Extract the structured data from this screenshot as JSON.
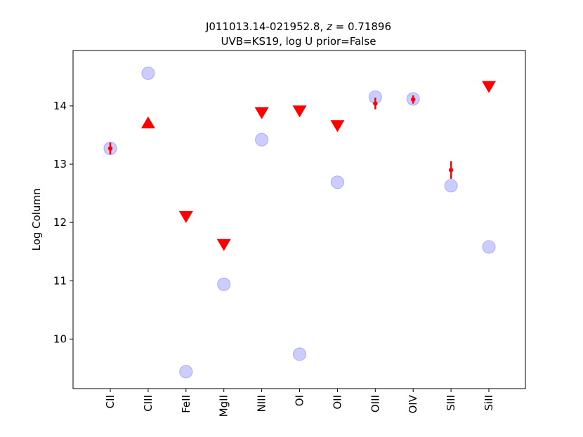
{
  "chart_data": {
    "type": "scatter",
    "title_line1": "J011013.14-021952.8, z = 0.71896",
    "title_line1_parts": {
      "prefix": "J011013.14-021952.8, ",
      "z_symbol": "z",
      "suffix": " = 0.71896"
    },
    "title_line2": "UVB=KS19, log U prior=False",
    "xlabel": "",
    "ylabel": "Log Column",
    "categories": [
      "CII",
      "CIII",
      "FeII",
      "MgII",
      "NIII",
      "OI",
      "OII",
      "OIII",
      "OIV",
      "SIII",
      "SiII"
    ],
    "ylim": [
      9.15,
      14.95
    ],
    "yticks": [
      10,
      11,
      12,
      13,
      14
    ],
    "series": [
      {
        "marker": "circle",
        "color": "#aaaaff",
        "values": [
          13.27,
          14.56,
          9.44,
          10.94,
          13.42,
          9.74,
          12.69,
          14.15,
          14.12,
          12.63,
          11.58
        ]
      },
      {
        "marker": "errorbar",
        "color": "#ff0000",
        "points": [
          {
            "category": "CII",
            "value": 13.27,
            "err": 0.1
          },
          {
            "category": "OIII",
            "value": 14.04,
            "err": 0.1
          },
          {
            "category": "OIV",
            "value": 14.11,
            "err": 0.07
          },
          {
            "category": "SIII",
            "value": 12.9,
            "err": 0.15
          }
        ]
      },
      {
        "marker": "triangle-up",
        "color": "#ff0000",
        "points": [
          {
            "category": "CIII",
            "value": 13.71
          }
        ]
      },
      {
        "marker": "triangle-down",
        "color": "#ff0000",
        "points": [
          {
            "category": "FeII",
            "value": 12.1
          },
          {
            "category": "MgII",
            "value": 11.62
          },
          {
            "category": "NIII",
            "value": 13.88
          },
          {
            "category": "OI",
            "value": 13.91
          },
          {
            "category": "OII",
            "value": 13.66
          },
          {
            "category": "SiII",
            "value": 14.33
          }
        ]
      }
    ],
    "grid": false,
    "legend": "none"
  }
}
